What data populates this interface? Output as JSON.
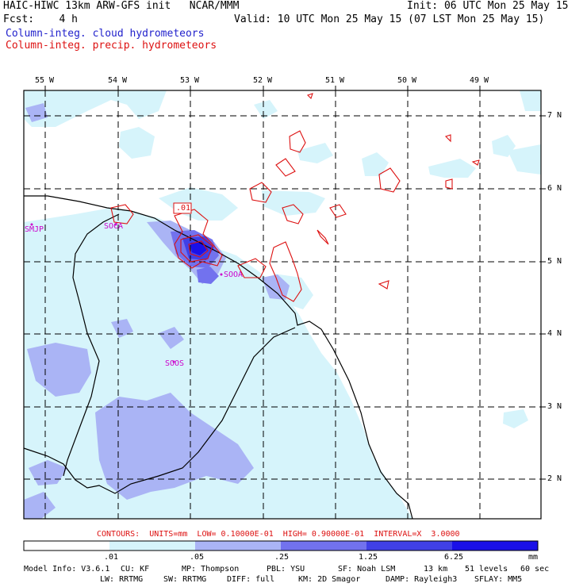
{
  "header": {
    "title": "HAIC-HIWC 13km ARW-GFS init   NCAR/MMM",
    "init": "Init: 06 UTC Mon 25 May 15",
    "fcst": "Fcst:    4 h",
    "valid": "Valid: 10 UTC Mon 25 May 15 (07 LST Mon 25 May 15)",
    "legend_cloud": "Column-integ. cloud hydrometeors",
    "legend_precip": "Column-integ. precip. hydrometeors"
  },
  "colors": {
    "cloud_label": "#2222cc",
    "precip_label": "#dd1111",
    "level1": "#d6f4fb",
    "level2": "#aab4f5",
    "level3": "#7272ee",
    "level4": "#4040e6",
    "level5": "#1a10e8",
    "contour": "#dd1111",
    "station": "#cc00cc"
  },
  "map": {
    "lon_labels": [
      "55 W",
      "54 W",
      "53 W",
      "52 W",
      "51 W",
      "50 W",
      "49 W"
    ],
    "lat_labels": [
      "7 N",
      "6 N",
      "5 N",
      "4 N",
      "3 N",
      "2 N"
    ],
    "stations": [
      "SMJP",
      "SOCA",
      "SOOA",
      "SOOS"
    ],
    "contour_label": ".01"
  },
  "contours_note": "CONTOURS:  UNITS=mm  LOW= 0.10000E-01  HIGH= 0.90000E-01  INTERVAL=X  3.0000",
  "colorbar": {
    "ticks": [
      ".01",
      ".05",
      ".25",
      "1.25",
      "6.25"
    ],
    "units": "mm"
  },
  "footer": {
    "line1": [
      "Model Info: V3.6.1",
      "CU: KF",
      "MP: Thompson",
      "PBL: YSU",
      "SF: Noah LSM",
      "13 km",
      "51 levels",
      "60 sec"
    ],
    "line2": [
      "LW: RRTMG",
      "SW: RRTMG",
      "DIFF: full",
      "KM: 2D Smagor",
      "DAMP: Rayleigh3",
      "SFLAY: MM5"
    ]
  }
}
